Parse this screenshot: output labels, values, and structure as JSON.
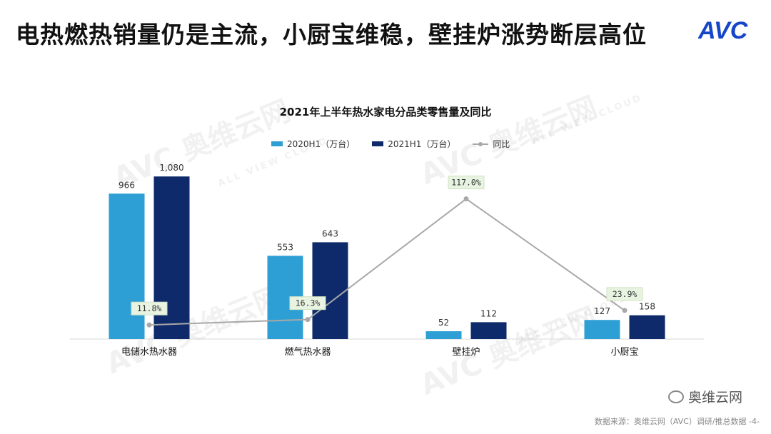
{
  "slide": {
    "headline": "电热燃热销量仍是主流，小厨宝维稳，壁挂炉涨势断层高位",
    "brand_logo_text": "AVC",
    "watermark_main": "AVC 奥维云网",
    "watermark_sub": "ALL VIEW CLOUD",
    "source_note": "数据来源：奥维云网（AVC）调研/推总数据   -4-",
    "wechat_badge": "奥维云网"
  },
  "chart_data": {
    "type": "bar",
    "title": "2021年上半年热水家电分品类零售量及同比",
    "categories": [
      "电储水热水器",
      "燃气热水器",
      "壁挂炉",
      "小厨宝"
    ],
    "series": [
      {
        "name": "2020H1（万台）",
        "values": [
          966,
          553,
          52,
          127
        ],
        "labels": [
          "966",
          "553",
          "52",
          "127"
        ],
        "color": "#2E9FD4"
      },
      {
        "name": "2021H1（万台）",
        "values": [
          1080,
          643,
          112,
          158
        ],
        "labels": [
          "1,080",
          "643",
          "112",
          "158"
        ],
        "color": "#0E2A6B"
      }
    ],
    "line_series": {
      "name": "同比",
      "values": [
        11.8,
        16.3,
        117.0,
        23.9
      ],
      "labels": [
        "11.8%",
        "16.3%",
        "117.0%",
        "23.9%"
      ],
      "color": "#A8A8A8",
      "unit": "%"
    },
    "ylim": [
      0,
      1100
    ],
    "line_ylim": [
      0,
      140
    ],
    "legend_position": "top",
    "grid": false
  }
}
